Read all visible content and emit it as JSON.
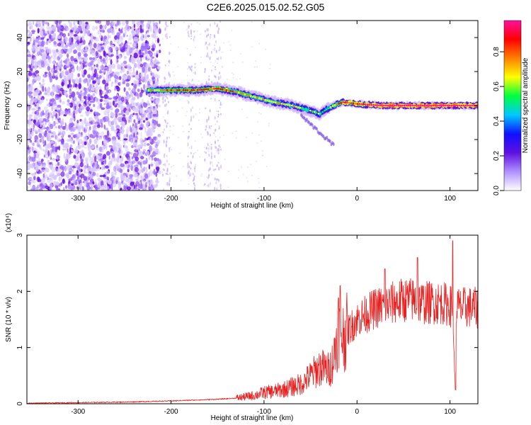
{
  "title": "C2E6.2025.015.02.52.G05",
  "colors": {
    "snr_line": "#e82020",
    "spectrum_noise": "#6a10e0",
    "colormap": [
      "#ffffff",
      "#b090ff",
      "#6010e0",
      "#1010ff",
      "#00c8ff",
      "#00ff40",
      "#ffff00",
      "#ff8000",
      "#ff0000",
      "#ff10a0"
    ]
  },
  "chart_data": [
    {
      "type": "heatmap",
      "name": "spectrogram",
      "xlabel": "Height of straight line (km)",
      "ylabel": "Frequency (Hz)",
      "xlim": [
        -355,
        130
      ],
      "ylim": [
        -50,
        50
      ],
      "xticks": [
        -300,
        -200,
        -100,
        0,
        100
      ],
      "yticks": [
        -40,
        -20,
        0,
        20,
        40
      ],
      "colorbar": {
        "label": "Normalized spectral amplitude",
        "range": [
          0,
          0.98
        ],
        "ticks": [
          "0.0",
          "0.2",
          "0.4",
          "0.6",
          "0.8"
        ],
        "tick_values": [
          0.0,
          0.2,
          0.4,
          0.6,
          0.8
        ]
      },
      "signal_track": [
        {
          "x": -225,
          "y": 9,
          "amp": 0.5
        },
        {
          "x": -200,
          "y": 9,
          "amp": 0.6
        },
        {
          "x": -175,
          "y": 9,
          "amp": 0.65
        },
        {
          "x": -150,
          "y": 10,
          "amp": 0.7
        },
        {
          "x": -130,
          "y": 8,
          "amp": 0.6
        },
        {
          "x": -110,
          "y": 5,
          "amp": 0.5
        },
        {
          "x": -90,
          "y": 2,
          "amp": 0.5
        },
        {
          "x": -70,
          "y": 0,
          "amp": 0.45
        },
        {
          "x": -50,
          "y": -3,
          "amp": 0.4
        },
        {
          "x": -40,
          "y": -5,
          "amp": 0.4
        },
        {
          "x": -35,
          "y": -3,
          "amp": 0.3
        },
        {
          "x": -25,
          "y": 0,
          "amp": 0.5
        },
        {
          "x": -15,
          "y": 2,
          "amp": 0.7
        },
        {
          "x": 0,
          "y": 1,
          "amp": 0.75
        },
        {
          "x": 25,
          "y": 0,
          "amp": 0.85
        },
        {
          "x": 50,
          "y": 0,
          "amp": 0.9
        },
        {
          "x": 75,
          "y": 0,
          "amp": 0.9
        },
        {
          "x": 100,
          "y": 0,
          "amp": 0.9
        },
        {
          "x": 130,
          "y": 0,
          "amp": 0.85
        }
      ]
    },
    {
      "type": "line",
      "name": "snr",
      "xlabel": "Height of straight line (km)",
      "ylabel": "SNR (10 * v/v)",
      "scale_note": "(x10⁴)",
      "xlim": [
        -355,
        130
      ],
      "ylim": [
        0,
        3
      ],
      "xticks": [
        -300,
        -200,
        -100,
        0,
        100
      ],
      "yticks": [
        0,
        1,
        2,
        3
      ],
      "series": [
        {
          "x": [
            -355,
            -300,
            -250,
            -200,
            -150,
            -130,
            -110,
            -100,
            -90,
            -80,
            -70,
            -60,
            -50,
            -40,
            -30,
            -25,
            -20,
            -15,
            -10,
            -5,
            0,
            10,
            20,
            30,
            40,
            50,
            60,
            70,
            80,
            90,
            100,
            103,
            105,
            107,
            110,
            120,
            130
          ],
          "y": [
            0.01,
            0.02,
            0.03,
            0.05,
            0.08,
            0.1,
            0.15,
            0.2,
            0.22,
            0.25,
            0.3,
            0.35,
            0.5,
            0.65,
            0.6,
            0.8,
            1.4,
            1.2,
            1.3,
            1.4,
            1.5,
            1.6,
            1.7,
            1.75,
            1.8,
            1.85,
            1.85,
            1.8,
            1.8,
            1.8,
            1.75,
            1.7,
            0.5,
            1.75,
            1.7,
            1.72,
            1.7
          ],
          "spikes": [
            {
              "x": -18,
              "y": 2.1
            },
            {
              "x": 30,
              "y": 2.4
            },
            {
              "x": 65,
              "y": 2.6
            },
            {
              "x": 103,
              "y": 2.9
            },
            {
              "x": 106,
              "y": 0.25
            }
          ]
        }
      ]
    }
  ]
}
